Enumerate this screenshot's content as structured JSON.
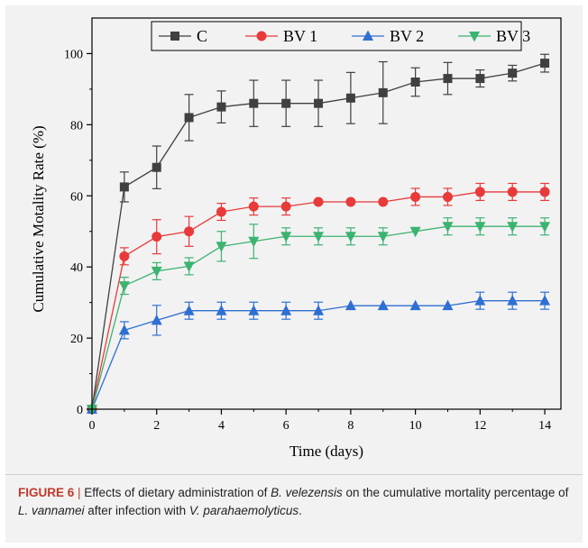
{
  "chart_data": {
    "type": "line",
    "title": "",
    "xlabel": "Time (days)",
    "ylabel": "Cumulative Motality Rate (%)",
    "xlim": [
      0,
      14.5
    ],
    "ylim": [
      0,
      110
    ],
    "xticks": [
      0,
      2,
      4,
      6,
      8,
      10,
      12,
      14
    ],
    "yticks": [
      0,
      20,
      40,
      60,
      80,
      100
    ],
    "x_tick_labels": [
      "0",
      "2",
      "4",
      "6",
      "8",
      "10",
      "12",
      "14"
    ],
    "y_tick_labels": [
      "0",
      "20",
      "40",
      "60",
      "80",
      "100"
    ],
    "grid": false,
    "legend_position": "top",
    "x": [
      0,
      1,
      2,
      3,
      4,
      5,
      6,
      7,
      8,
      9,
      10,
      11,
      12,
      13,
      14
    ],
    "series": [
      {
        "name": "C",
        "color": "#404040",
        "marker": "square",
        "values": [
          0,
          62.5,
          68,
          82,
          85,
          86,
          86,
          86,
          87.5,
          89,
          92,
          93,
          93,
          94.5,
          97.3
        ],
        "error": [
          0,
          4.2,
          6,
          6.5,
          4.5,
          6.5,
          6.5,
          6.5,
          7.2,
          8.7,
          4,
          4.5,
          2.4,
          2.2,
          2.5
        ]
      },
      {
        "name": "BV 1",
        "color": "#e83a3a",
        "marker": "circle",
        "values": [
          0,
          43,
          48.5,
          50,
          55.5,
          57,
          57,
          58.3,
          58.3,
          58.3,
          59.7,
          59.7,
          61.1,
          61.1,
          61.1
        ],
        "error": [
          0,
          2.4,
          4.8,
          4.2,
          2.4,
          2.4,
          2.4,
          0,
          0,
          0,
          2.4,
          2.4,
          2.4,
          2.4,
          2.4
        ]
      },
      {
        "name": "BV 2",
        "color": "#2f6fd1",
        "marker": "triangle-up",
        "values": [
          0,
          22.2,
          25,
          27.7,
          27.7,
          27.7,
          27.7,
          27.7,
          29.1,
          29.1,
          29.1,
          29.1,
          30.5,
          30.5,
          30.5
        ],
        "error": [
          0,
          2.4,
          4.2,
          2.4,
          2.4,
          2.4,
          2.4,
          2.4,
          0,
          0,
          0,
          0,
          2.4,
          2.4,
          2.4
        ]
      },
      {
        "name": "BV 3",
        "color": "#3cb371",
        "marker": "triangle-down",
        "values": [
          0,
          34.7,
          38.8,
          40.2,
          45.8,
          47.2,
          48.6,
          48.6,
          48.6,
          48.6,
          50,
          51.4,
          51.4,
          51.4,
          51.4
        ],
        "error": [
          0,
          2.4,
          2.4,
          2.4,
          4.2,
          4.8,
          2.4,
          2.4,
          2.4,
          2.4,
          0,
          2.4,
          2.4,
          2.4,
          2.4
        ]
      }
    ]
  },
  "caption": {
    "label": "FIGURE 6",
    "separator": "|",
    "t1": " Effects of dietary administration of ",
    "i1": "B. velezensis",
    "t2": " on the cumulative mortality percentage of ",
    "i2": "L. vannamei",
    "t3": " after infection with ",
    "i3": "V. parahaemolyticus",
    "t4": "."
  }
}
